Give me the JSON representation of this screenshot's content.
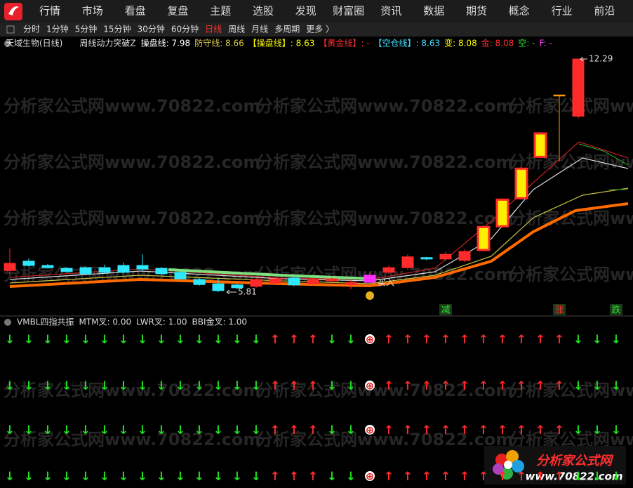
{
  "nav": [
    "行情",
    "市场",
    "看盘",
    "复盘",
    "主题",
    "选股",
    "发现",
    "财富圈",
    "资讯",
    "数据",
    "期货",
    "概念",
    "行业",
    "前沿"
  ],
  "periods": [
    "分时",
    "1分钟",
    "5分钟",
    "15分钟",
    "30分钟",
    "60分钟",
    "日线",
    "周线",
    "月线",
    "多周期",
    "更多 〉"
  ],
  "active_period": 6,
  "indicator": {
    "stock": "天域生物(日线)",
    "name": "周线动力突破Z",
    "items": [
      {
        "text": "操盘线: 7.98",
        "color": "#ffffff"
      },
      {
        "text": "防守线: 8.66",
        "color": "#d6c84a"
      },
      {
        "text": "【操盘线】: 8.63",
        "color": "#ffff00"
      },
      {
        "text": "【黄金线】: -",
        "color": "#ff3030"
      },
      {
        "text": "【空仓线】: 8.63",
        "color": "#3fe0ff"
      },
      {
        "text": "变: 8.08",
        "color": "#ffff00"
      },
      {
        "text": "金: 8.08",
        "color": "#ff3030"
      },
      {
        "text": "空: -",
        "color": "#33dd33"
      },
      {
        "text": "F: -",
        "color": "#ff40ff"
      }
    ]
  },
  "chart": {
    "low_marker": 5.81,
    "high_marker": 12.29,
    "buy_label": "买入",
    "tags": [
      {
        "text": "减",
        "col": 23
      },
      {
        "text": "涨",
        "col": 29
      },
      {
        "text": "跌",
        "col": 32
      }
    ],
    "candles": [
      {
        "open": 6.41,
        "close": 6.61,
        "high": 7.02,
        "low": 6.32
      },
      {
        "open": 6.67,
        "close": 6.55,
        "high": 6.75,
        "low": 6.51
      },
      {
        "open": 6.55,
        "close": 6.49,
        "high": 6.59,
        "low": 6.47
      },
      {
        "open": 6.47,
        "close": 6.38,
        "high": 6.51,
        "low": 6.34
      },
      {
        "open": 6.49,
        "close": 6.32,
        "high": 6.53,
        "low": 6.28
      },
      {
        "open": 6.49,
        "close": 6.36,
        "high": 6.57,
        "low": 6.32
      },
      {
        "open": 6.55,
        "close": 6.36,
        "high": 6.63,
        "low": 6.32
      },
      {
        "open": 6.55,
        "close": 6.45,
        "high": 6.86,
        "low": 6.4
      },
      {
        "open": 6.47,
        "close": 6.32,
        "high": 6.51,
        "low": 6.28
      },
      {
        "open": 6.36,
        "close": 6.18,
        "high": 6.4,
        "low": 6.14
      },
      {
        "open": 6.16,
        "close": 6.02,
        "high": 6.2,
        "low": 5.99
      },
      {
        "open": 6.04,
        "close": 5.85,
        "high": 6.2,
        "low": 5.81
      },
      {
        "open": 6.01,
        "close": 5.93,
        "high": 6.04,
        "low": 5.89
      },
      {
        "open": 5.97,
        "close": 6.16,
        "high": 6.2,
        "low": 5.93
      },
      {
        "open": 6.06,
        "close": 6.18,
        "high": 6.22,
        "low": 6.02
      },
      {
        "open": 6.2,
        "close": 6.01,
        "high": 6.24,
        "low": 5.97
      },
      {
        "open": 6.04,
        "close": 6.16,
        "high": 6.2,
        "low": 6.01
      },
      {
        "open": 6.12,
        "close": 6.18,
        "high": 6.22,
        "low": 6.08
      },
      {
        "open": 6.02,
        "close": 6.08,
        "high": 6.16,
        "low": 5.89
      },
      {
        "open": 6.08,
        "close": 6.28,
        "high": 6.36,
        "low": 6.04,
        "color": "#ff30ff"
      },
      {
        "open": 6.36,
        "close": 6.49,
        "high": 6.55,
        "low": 6.32
      },
      {
        "open": 6.49,
        "close": 6.79,
        "high": 6.86,
        "low": 6.43
      },
      {
        "open": 6.77,
        "close": 6.73,
        "high": 6.79,
        "low": 6.69
      },
      {
        "open": 6.73,
        "close": 6.86,
        "high": 6.94,
        "low": 6.67
      },
      {
        "open": 6.69,
        "close": 6.94,
        "high": 7.0,
        "low": 6.65
      },
      {
        "open": 6.98,
        "close": 7.62,
        "high": 7.68,
        "low": 6.94,
        "color": "#ffee00"
      },
      {
        "open": 7.64,
        "close": 8.38,
        "high": 8.42,
        "low": 7.6,
        "color": "#ffee00"
      },
      {
        "open": 8.42,
        "close": 9.24,
        "high": 9.28,
        "low": 8.38,
        "color": "#ffee00"
      },
      {
        "open": 9.57,
        "close": 10.22,
        "high": 10.26,
        "low": 9.53,
        "color": "#ffee00"
      },
      {
        "open": 11.27,
        "close": 11.29,
        "high": 11.29,
        "low": 9.44,
        "color": "#ff9900"
      },
      {
        "open": 10.7,
        "close": 12.29,
        "high": 12.29,
        "low": 10.64
      }
    ]
  },
  "lower": {
    "name": "VMBL四指共振",
    "items": [
      "MTM叉: 0.00",
      "LWR叉: 1.00",
      "BBI金叉: 1.00"
    ],
    "rows": [
      [
        "↓",
        "↓",
        "↓",
        "↓",
        "↓",
        "↓",
        "↓",
        "↓",
        "↓",
        "↓",
        "↓",
        "↓",
        "↓",
        "↓",
        "↑",
        "↑",
        "↑",
        "↓",
        "↓",
        "⊕",
        "↑",
        "↑",
        "↑",
        "↑",
        "↑",
        "↑",
        "↑",
        "↑",
        "↑",
        "↑",
        "↓",
        "↓",
        "↓"
      ],
      [
        "↓",
        "↓",
        "↓",
        "↓",
        "↓",
        "↓",
        "↓",
        "↓",
        "↓",
        "↓",
        "↓",
        "↓",
        "↓",
        "↓",
        "↑",
        "↑",
        "↑",
        "↓",
        "↓",
        "⊕",
        "↑",
        "↑",
        "↑",
        "↑",
        "↑",
        "↑",
        "↑",
        "↑",
        "↑",
        "↑",
        "↓",
        "↓",
        "↓"
      ],
      [
        "↓",
        "↓",
        "↓",
        "↓",
        "↓",
        "↓",
        "↓",
        "↓",
        "↓",
        "↓",
        "↓",
        "↓",
        "↓",
        "↓",
        "↑",
        "↑",
        "↑",
        "↓",
        "↓",
        "⊕",
        "↑",
        "↑",
        "↑",
        "↑",
        "↑",
        "↑",
        "↑",
        "↑",
        "↑",
        "↑",
        "↓",
        "↓",
        "↓"
      ],
      [
        "↓",
        "↓",
        "↓",
        "↓",
        "↓",
        "↓",
        "↓",
        "↓",
        "↓",
        "↓",
        "↓",
        "↓",
        "↓",
        "↓",
        "↑",
        "↑",
        "↑",
        "↓",
        "↓",
        "⊕",
        "↑",
        "↑",
        "↑",
        "↑",
        "↑",
        "↑",
        "↑",
        "↑",
        "↑",
        "↑",
        "↓",
        "↓",
        "↓"
      ]
    ]
  },
  "watermark": "分析家公式网www.70822.com",
  "logo": {
    "name": "分析家公式网",
    "url": "www.70822.com"
  }
}
